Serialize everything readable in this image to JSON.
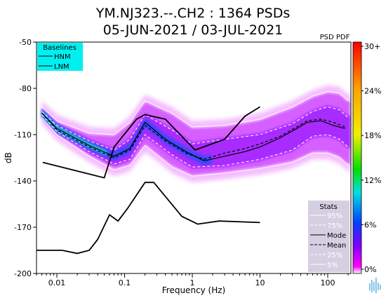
{
  "header": {
    "title": "YM.NJ323.--.CH2 : 1364 PSDs",
    "subtitle": "05-JUN-2021 / 03-JUL-2021"
  },
  "chart_data": {
    "type": "heatmap",
    "xlabel": "Frequency (Hz)",
    "ylabel": "dB",
    "x_scale": "log",
    "xlim": [
      0.005,
      220
    ],
    "ylim": [
      -200,
      -50
    ],
    "x_ticks": [
      {
        "value": 0.01,
        "label": "0.01"
      },
      {
        "value": 0.1,
        "label": "0.1"
      },
      {
        "value": 1,
        "label": "1"
      },
      {
        "value": 10,
        "label": "10"
      },
      {
        "value": 100,
        "label": "100"
      }
    ],
    "y_ticks": [
      {
        "value": -50,
        "label": "-50"
      },
      {
        "value": -80,
        "label": "-80"
      },
      {
        "value": -110,
        "label": "-110"
      },
      {
        "value": -140,
        "label": "-140"
      },
      {
        "value": -170,
        "label": "-170"
      },
      {
        "value": -200,
        "label": "-200"
      }
    ],
    "colorbar": {
      "label": "PSD PDF",
      "ticks": [
        "30+",
        "24%",
        "18%",
        "12%",
        "6%",
        "0%"
      ],
      "colors": [
        "#ff0000",
        "#ffa000",
        "#ffff00",
        "#00e000",
        "#00e0e0",
        "#0040ff",
        "#8000ff",
        "#ff00ff",
        "#ffffff"
      ]
    },
    "baselines": {
      "title": "Baselines",
      "items": [
        "HNM",
        "LNM"
      ],
      "hnm": [
        [
          0.0062,
          -128
        ],
        [
          0.05,
          -138
        ],
        [
          0.07,
          -118
        ],
        [
          0.15,
          -100
        ],
        [
          0.2,
          -97
        ],
        [
          0.4,
          -100
        ],
        [
          1.1,
          -120
        ],
        [
          3,
          -113
        ],
        [
          6,
          -98
        ],
        [
          10,
          -92
        ]
      ],
      "lnm": [
        [
          0.005,
          -185
        ],
        [
          0.012,
          -185
        ],
        [
          0.02,
          -187
        ],
        [
          0.03,
          -185
        ],
        [
          0.04,
          -178
        ],
        [
          0.06,
          -162
        ],
        [
          0.08,
          -166
        ],
        [
          0.11,
          -158
        ],
        [
          0.2,
          -141
        ],
        [
          0.27,
          -141
        ],
        [
          0.7,
          -163
        ],
        [
          1.2,
          -168
        ],
        [
          2.5,
          -166
        ],
        [
          10,
          -167
        ]
      ]
    },
    "stats": {
      "title": "Stats",
      "items": [
        "95%",
        "75%",
        "Mode",
        "Mean",
        "25%",
        "5%"
      ]
    },
    "series": [
      {
        "name": "95%",
        "color": "#ffffff",
        "dash": "solid",
        "points": [
          [
            0.006,
            -92
          ],
          [
            0.01,
            -101
          ],
          [
            0.03,
            -109
          ],
          [
            0.07,
            -110
          ],
          [
            0.12,
            -102
          ],
          [
            0.2,
            -88
          ],
          [
            0.5,
            -96
          ],
          [
            1,
            -105
          ],
          [
            3,
            -104
          ],
          [
            10,
            -100
          ],
          [
            30,
            -92
          ],
          [
            60,
            -85
          ],
          [
            100,
            -82
          ],
          [
            150,
            -83
          ],
          [
            200,
            -88
          ]
        ]
      },
      {
        "name": "75%",
        "color": "#ffffff",
        "dash": "dashed",
        "points": [
          [
            0.006,
            -95
          ],
          [
            0.01,
            -104
          ],
          [
            0.03,
            -114
          ],
          [
            0.07,
            -120
          ],
          [
            0.12,
            -113
          ],
          [
            0.2,
            -97
          ],
          [
            0.5,
            -107
          ],
          [
            1,
            -116
          ],
          [
            3,
            -113
          ],
          [
            10,
            -110
          ],
          [
            30,
            -103
          ],
          [
            60,
            -95
          ],
          [
            100,
            -92
          ],
          [
            150,
            -94
          ],
          [
            200,
            -99
          ]
        ]
      },
      {
        "name": "Mode",
        "color": "#000000",
        "dash": "solid",
        "points": [
          [
            0.006,
            -96
          ],
          [
            0.01,
            -106
          ],
          [
            0.03,
            -117
          ],
          [
            0.07,
            -124
          ],
          [
            0.12,
            -119
          ],
          [
            0.2,
            -102
          ],
          [
            0.4,
            -113
          ],
          [
            0.8,
            -121
          ],
          [
            1.5,
            -127
          ],
          [
            3,
            -124
          ],
          [
            6,
            -121
          ],
          [
            10,
            -118
          ],
          [
            20,
            -112
          ],
          [
            35,
            -106
          ],
          [
            50,
            -102
          ],
          [
            80,
            -101
          ],
          [
            120,
            -104
          ],
          [
            180,
            -106
          ]
        ]
      },
      {
        "name": "Mean",
        "color": "#000000",
        "dash": "dashed",
        "points": [
          [
            0.006,
            -96
          ],
          [
            0.01,
            -107
          ],
          [
            0.03,
            -118
          ],
          [
            0.07,
            -125
          ],
          [
            0.12,
            -120
          ],
          [
            0.2,
            -104
          ],
          [
            0.4,
            -114
          ],
          [
            0.8,
            -122
          ],
          [
            1.5,
            -126
          ],
          [
            3,
            -122
          ],
          [
            6,
            -119
          ],
          [
            10,
            -116
          ],
          [
            20,
            -111
          ],
          [
            35,
            -105
          ],
          [
            50,
            -101
          ],
          [
            80,
            -100
          ],
          [
            120,
            -102
          ],
          [
            180,
            -105
          ]
        ]
      },
      {
        "name": "25%",
        "color": "#ffffff",
        "dash": "dashed",
        "points": [
          [
            0.006,
            -97
          ],
          [
            0.01,
            -108
          ],
          [
            0.03,
            -121
          ],
          [
            0.07,
            -129
          ],
          [
            0.12,
            -126
          ],
          [
            0.2,
            -110
          ],
          [
            0.5,
            -123
          ],
          [
            1,
            -131
          ],
          [
            3,
            -130
          ],
          [
            10,
            -126
          ],
          [
            30,
            -120
          ],
          [
            60,
            -111
          ],
          [
            100,
            -110
          ],
          [
            150,
            -113
          ],
          [
            200,
            -118
          ]
        ]
      },
      {
        "name": "5%",
        "color": "#ffffff",
        "dash": "solid",
        "points": [
          [
            0.006,
            -99
          ],
          [
            0.01,
            -110
          ],
          [
            0.03,
            -124
          ],
          [
            0.07,
            -133
          ],
          [
            0.12,
            -130
          ],
          [
            0.2,
            -117
          ],
          [
            0.5,
            -131
          ],
          [
            1,
            -137
          ],
          [
            3,
            -135
          ],
          [
            10,
            -132
          ],
          [
            30,
            -128
          ],
          [
            60,
            -122
          ],
          [
            100,
            -122
          ],
          [
            150,
            -125
          ],
          [
            200,
            -130
          ]
        ]
      }
    ]
  }
}
